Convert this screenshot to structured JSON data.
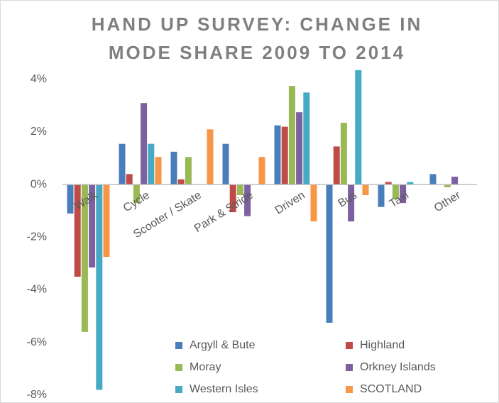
{
  "chart_data": {
    "type": "bar",
    "title": [
      "HAND UP SURVEY: CHANGE IN",
      "MODE SHARE 2009 TO 2014"
    ],
    "categories": [
      "Walk",
      "Cycle",
      "Scooter / Skate",
      "Park & Stride",
      "Driven",
      "Bus",
      "Taxi",
      "Other"
    ],
    "series": [
      {
        "name": "Argyll & Bute",
        "color": "#4a7ebb",
        "values": [
          -1.1,
          1.55,
          1.25,
          1.55,
          2.25,
          -5.25,
          -0.85,
          0.4
        ]
      },
      {
        "name": "Highland",
        "color": "#be4b48",
        "values": [
          -3.5,
          0.4,
          0.2,
          -1.05,
          2.2,
          1.45,
          0.1,
          0
        ]
      },
      {
        "name": "Moray",
        "color": "#98b954",
        "values": [
          -5.6,
          -0.7,
          1.05,
          -0.4,
          3.75,
          2.35,
          -0.55,
          -0.1
        ]
      },
      {
        "name": "Orkney Islands",
        "color": "#7d60a0",
        "values": [
          -3.15,
          3.1,
          0,
          -1.2,
          2.75,
          -1.4,
          -0.7,
          0.3
        ]
      },
      {
        "name": "Western Isles",
        "color": "#46aac5",
        "values": [
          -7.8,
          1.55,
          0,
          0,
          3.5,
          4.35,
          0.1,
          0
        ]
      },
      {
        "name": "SCOTLAND",
        "color": "#f79646",
        "values": [
          -2.75,
          1.05,
          2.1,
          1.05,
          -1.4,
          -0.4,
          0,
          0
        ]
      }
    ],
    "ylim": [
      -8.3,
      4.4
    ],
    "yticks": [
      {
        "value": 4,
        "label": "4%"
      },
      {
        "value": 2,
        "label": "2%"
      },
      {
        "value": 0,
        "label": "0%"
      },
      {
        "value": -2,
        "label": "-2%"
      },
      {
        "value": -4,
        "label": "-4%"
      },
      {
        "value": -6,
        "label": "-6%"
      },
      {
        "value": -8,
        "label": "-8%"
      }
    ],
    "grid": false,
    "legend": "bottom"
  }
}
